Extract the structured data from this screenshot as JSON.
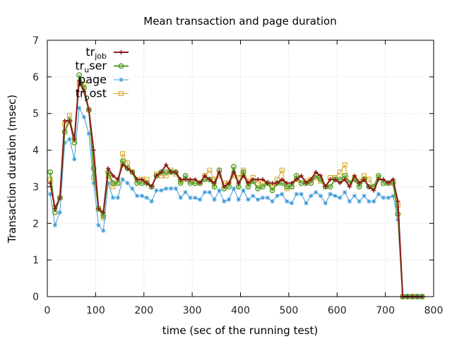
{
  "chart_data": {
    "type": "line",
    "title": "Mean transaction and page duration",
    "xlabel": "time (sec of the running test)",
    "ylabel": "Transaction duration (msec)",
    "xlim": [
      0,
      800
    ],
    "ylim": [
      0,
      7
    ],
    "xticks": [
      0,
      100,
      200,
      300,
      400,
      500,
      600,
      700,
      800
    ],
    "yticks": [
      0,
      1,
      2,
      3,
      4,
      5,
      6,
      7
    ],
    "grid": true,
    "legend_position": "top-left",
    "series": [
      {
        "name": "tr_job",
        "name_base": "tr",
        "name_sub": "job",
        "color": "#8b1a1a",
        "marker": "plus",
        "x": [
          6,
          16,
          26,
          36,
          46,
          56,
          66,
          76,
          86,
          96,
          106,
          116,
          126,
          136,
          146,
          156,
          166,
          176,
          186,
          196,
          206,
          216,
          226,
          236,
          246,
          256,
          266,
          276,
          286,
          296,
          306,
          316,
          326,
          336,
          346,
          356,
          366,
          376,
          386,
          396,
          406,
          416,
          426,
          436,
          446,
          456,
          466,
          476,
          486,
          496,
          506,
          516,
          526,
          536,
          546,
          556,
          566,
          576,
          586,
          596,
          606,
          616,
          626,
          636,
          646,
          656,
          666,
          676,
          686,
          696,
          706,
          716,
          726,
          736,
          746,
          756,
          766,
          776
        ],
        "y": [
          3.1,
          2.4,
          2.7,
          4.8,
          4.8,
          4.3,
          5.9,
          5.6,
          5.1,
          4.0,
          2.4,
          2.3,
          3.5,
          3.3,
          3.2,
          3.6,
          3.5,
          3.4,
          3.2,
          3.2,
          3.1,
          3.0,
          3.3,
          3.4,
          3.6,
          3.4,
          3.4,
          3.2,
          3.2,
          3.2,
          3.2,
          3.1,
          3.3,
          3.2,
          3.1,
          3.4,
          3.0,
          3.1,
          3.4,
          3.1,
          3.3,
          3.1,
          3.2,
          3.2,
          3.2,
          3.1,
          3.1,
          3.1,
          3.2,
          3.1,
          3.1,
          3.2,
          3.3,
          3.1,
          3.2,
          3.4,
          3.3,
          3.0,
          3.2,
          3.2,
          3.1,
          3.2,
          3.0,
          3.3,
          3.1,
          3.2,
          3.0,
          2.9,
          3.2,
          3.2,
          3.1,
          3.2,
          2.6,
          0.0,
          0.0,
          0.0,
          0.0,
          0.0
        ]
      },
      {
        "name": "tr_user",
        "name_base": "tr",
        "name_sub": "u",
        "name_suffix": "ser",
        "color": "#5aa02c",
        "marker": "circle",
        "x": [
          6,
          16,
          26,
          36,
          46,
          56,
          66,
          76,
          86,
          96,
          106,
          116,
          126,
          136,
          146,
          156,
          166,
          176,
          186,
          196,
          206,
          216,
          226,
          236,
          246,
          256,
          266,
          276,
          286,
          296,
          306,
          316,
          326,
          336,
          346,
          356,
          366,
          376,
          386,
          396,
          406,
          416,
          426,
          436,
          446,
          456,
          466,
          476,
          486,
          496,
          506,
          516,
          526,
          536,
          546,
          556,
          566,
          576,
          586,
          596,
          606,
          616,
          626,
          636,
          646,
          656,
          666,
          676,
          686,
          696,
          706,
          716,
          726,
          736,
          746,
          756,
          766,
          776
        ],
        "y": [
          3.4,
          2.3,
          2.7,
          4.5,
          4.8,
          4.2,
          6.05,
          5.7,
          5.1,
          3.5,
          2.4,
          2.2,
          3.4,
          3.1,
          3.1,
          3.7,
          3.5,
          3.4,
          3.1,
          3.1,
          3.1,
          3.0,
          3.3,
          3.4,
          3.4,
          3.4,
          3.4,
          3.1,
          3.3,
          3.1,
          3.1,
          3.1,
          3.2,
          3.2,
          3.0,
          3.45,
          2.95,
          3.0,
          3.55,
          3.0,
          3.4,
          3.0,
          3.15,
          2.95,
          3.0,
          3.1,
          2.9,
          3.1,
          3.1,
          3.0,
          3.0,
          3.3,
          3.1,
          3.1,
          3.1,
          3.3,
          3.2,
          3.0,
          3.0,
          3.2,
          3.2,
          3.3,
          3.1,
          3.2,
          3.0,
          3.2,
          3.0,
          3.0,
          3.3,
          3.1,
          3.1,
          3.1,
          2.25,
          0.0,
          0.0,
          0.0,
          0.0,
          0.0
        ]
      },
      {
        "name": "page",
        "name_base": "page",
        "color": "#3a9ad9",
        "marker": "star",
        "x": [
          6,
          16,
          26,
          36,
          46,
          56,
          66,
          76,
          86,
          96,
          106,
          116,
          126,
          136,
          146,
          156,
          166,
          176,
          186,
          196,
          206,
          216,
          226,
          236,
          246,
          256,
          266,
          276,
          286,
          296,
          306,
          316,
          326,
          336,
          346,
          356,
          366,
          376,
          386,
          396,
          406,
          416,
          426,
          436,
          446,
          456,
          466,
          476,
          486,
          496,
          506,
          516,
          526,
          536,
          546,
          556,
          566,
          576,
          586,
          596,
          606,
          616,
          626,
          636,
          646,
          656,
          666,
          676,
          686,
          696,
          706,
          716,
          726,
          736,
          746,
          756,
          766,
          776
        ],
        "y": [
          2.8,
          1.95,
          2.3,
          4.2,
          4.3,
          3.75,
          5.15,
          4.9,
          4.45,
          3.1,
          1.95,
          1.8,
          3.1,
          2.7,
          2.7,
          3.2,
          3.1,
          2.95,
          2.75,
          2.75,
          2.7,
          2.6,
          2.9,
          2.9,
          2.95,
          2.95,
          2.95,
          2.7,
          2.85,
          2.7,
          2.7,
          2.65,
          2.85,
          2.85,
          2.65,
          2.9,
          2.6,
          2.65,
          2.95,
          2.65,
          2.9,
          2.65,
          2.75,
          2.65,
          2.7,
          2.7,
          2.6,
          2.75,
          2.8,
          2.6,
          2.55,
          2.8,
          2.8,
          2.55,
          2.75,
          2.85,
          2.75,
          2.55,
          2.8,
          2.75,
          2.7,
          2.85,
          2.6,
          2.75,
          2.6,
          2.75,
          2.6,
          2.6,
          2.8,
          2.7,
          2.7,
          2.75,
          2.1,
          0.0,
          0.0,
          0.0,
          0.0,
          0.0
        ]
      },
      {
        "name": "tr_post",
        "name_base": "tr",
        "name_sub": "p",
        "name_suffix": "ost",
        "color": "#d4a017",
        "marker": "square",
        "x": [
          6,
          16,
          26,
          36,
          46,
          56,
          66,
          76,
          86,
          96,
          106,
          116,
          126,
          136,
          146,
          156,
          166,
          176,
          186,
          196,
          206,
          216,
          226,
          236,
          246,
          256,
          266,
          276,
          286,
          296,
          306,
          316,
          326,
          336,
          346,
          356,
          366,
          376,
          386,
          396,
          406,
          416,
          426,
          436,
          446,
          456,
          466,
          476,
          486,
          496,
          506,
          516,
          526,
          536,
          546,
          556,
          566,
          576,
          586,
          596,
          606,
          616,
          626,
          636,
          646,
          656,
          666,
          676,
          686,
          696,
          706,
          716,
          726,
          736,
          746,
          756,
          766,
          776
        ],
        "y": [
          3.2,
          2.45,
          2.7,
          4.7,
          4.95,
          4.3,
          5.8,
          5.8,
          5.1,
          3.25,
          2.4,
          2.15,
          3.3,
          3.0,
          3.1,
          3.9,
          3.65,
          3.4,
          3.2,
          3.2,
          3.2,
          3.0,
          3.35,
          3.3,
          3.3,
          3.45,
          3.35,
          3.15,
          3.2,
          3.15,
          3.1,
          3.1,
          3.3,
          3.45,
          3.2,
          3.3,
          3.1,
          3.1,
          3.3,
          3.25,
          3.45,
          3.15,
          3.25,
          3.1,
          3.1,
          3.1,
          3.0,
          3.2,
          3.45,
          2.95,
          3.0,
          3.2,
          3.1,
          3.15,
          3.2,
          3.25,
          3.15,
          3.0,
          3.25,
          3.25,
          3.4,
          3.6,
          3.1,
          3.25,
          3.15,
          3.3,
          3.2,
          3.0,
          3.25,
          3.1,
          3.1,
          3.15,
          2.5,
          0.0,
          0.0,
          0.0,
          0.0,
          0.0
        ]
      }
    ]
  }
}
